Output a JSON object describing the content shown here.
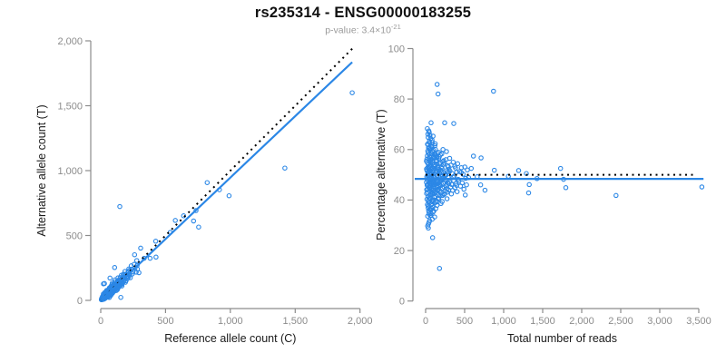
{
  "header": {
    "title": "rs235314 - ENSG00000183255",
    "pvalue_label": "p-value: ",
    "pvalue_mantissa": "3.4×10",
    "pvalue_exponent": "-21"
  },
  "style": {
    "point_color": "#2b87e6",
    "fit_line_color": "#2b87e6",
    "expected_line_color": "#000000",
    "axis_color": "#8c8c8c",
    "tick_label_color": "#8c8c8c",
    "axis_title_color": "#1a1a1a"
  },
  "chart_data": {
    "type": "scatter",
    "title": "rs235314 - ENSG00000183255",
    "subtitle": "p-value: 3.4×10^-21",
    "plots": [
      {
        "id": "allele-counts",
        "xlabel": "Reference allele count (C)",
        "ylabel": "Alternative allele count (T)",
        "xlim": [
          0,
          2000
        ],
        "ylim": [
          0,
          2000
        ],
        "xticks": [
          0,
          500,
          1000,
          1500,
          2000
        ],
        "xtick_labels": [
          "0",
          "500",
          "1,000",
          "1,500",
          "2,000"
        ],
        "yticks": [
          0,
          500,
          1000,
          1500,
          2000
        ],
        "ytick_labels": [
          "0",
          "500",
          "1,000",
          "1,500",
          "2,000"
        ],
        "point_mapping": "ref_alt",
        "grid": false,
        "lines": [
          {
            "name": "expected-ratio",
            "style": "dotted",
            "color_key": "expected_line_color",
            "x": [
              0,
              1950
            ],
            "y": [
              0,
              1950
            ]
          },
          {
            "name": "fitted-ratio",
            "style": "solid",
            "color_key": "fit_line_color",
            "x": [
              0,
              1940
            ],
            "y": [
              0,
              1836
            ]
          }
        ]
      },
      {
        "id": "percentage-by-coverage",
        "xlabel": "Total number of reads",
        "ylabel": "Percentage alternative (T)",
        "xlim": [
          0,
          3500
        ],
        "ylim": [
          0,
          100
        ],
        "xticks": [
          0,
          500,
          1000,
          1500,
          2000,
          2500,
          3000,
          3500
        ],
        "xtick_labels": [
          "0",
          "500",
          "1,000",
          "1,500",
          "2,000",
          "2,500",
          "3,000",
          "3,500"
        ],
        "yticks": [
          0,
          20,
          40,
          60,
          80,
          100
        ],
        "ytick_labels": [
          "0",
          "20",
          "40",
          "60",
          "80",
          "100"
        ],
        "point_mapping": "total_pct",
        "grid": false,
        "lines": [
          {
            "name": "expected-percentage",
            "style": "dotted",
            "color_key": "expected_line_color",
            "x": [
              0,
              3450
            ],
            "y": [
              50,
              50
            ]
          },
          {
            "name": "fitted-percentage",
            "style": "solid",
            "color_key": "fit_line_color",
            "x": [
              -140,
              3560
            ],
            "y": [
              48.4,
              48.4
            ]
          }
        ]
      }
    ],
    "samples_total_pct": [
      [
        10,
        47.0
      ],
      [
        12,
        52.3
      ],
      [
        14,
        44.1
      ],
      [
        16,
        56.2
      ],
      [
        18,
        40.3
      ],
      [
        15,
        49.2
      ],
      [
        11,
        55.4
      ],
      [
        13,
        42.6
      ],
      [
        17,
        51.6
      ],
      [
        19,
        45.9
      ],
      [
        21,
        48.0
      ],
      [
        22,
        57.5
      ],
      [
        23,
        38.2
      ],
      [
        24,
        62.1
      ],
      [
        25,
        44.3
      ],
      [
        26,
        52.8
      ],
      [
        27,
        33.6
      ],
      [
        28,
        59.4
      ],
      [
        29,
        46.2
      ],
      [
        30,
        50.9
      ],
      [
        31,
        41.5
      ],
      [
        32,
        64.8
      ],
      [
        33,
        36.9
      ],
      [
        34,
        54.2
      ],
      [
        35,
        48.8
      ],
      [
        36,
        30.5
      ],
      [
        37,
        60.7
      ],
      [
        38,
        45.1
      ],
      [
        39,
        56.3
      ],
      [
        40,
        40.2
      ],
      [
        41,
        67.4
      ],
      [
        42,
        49.6
      ],
      [
        43,
        35.0
      ],
      [
        44,
        58.1
      ],
      [
        45,
        43.7
      ],
      [
        46,
        51.9
      ],
      [
        47,
        38.8
      ],
      [
        48,
        63.2
      ],
      [
        49,
        47.0
      ],
      [
        50,
        53.5
      ],
      [
        51,
        31.8
      ],
      [
        52,
        59.9
      ],
      [
        53,
        44.9
      ],
      [
        54,
        50.2
      ],
      [
        55,
        36.4
      ],
      [
        56,
        65.6
      ],
      [
        57,
        42.1
      ],
      [
        58,
        55.7
      ],
      [
        59,
        47.8
      ],
      [
        60,
        33.9
      ],
      [
        22,
        68.3
      ],
      [
        26,
        29.7
      ],
      [
        31,
        61.9
      ],
      [
        36,
        39.5
      ],
      [
        41,
        53.1
      ],
      [
        46,
        34.4
      ],
      [
        51,
        57.0
      ],
      [
        56,
        45.8
      ],
      [
        24,
        49.9
      ],
      [
        29,
        66.1
      ],
      [
        34,
        37.7
      ],
      [
        39,
        52.4
      ],
      [
        44,
        31.2
      ],
      [
        49,
        60.5
      ],
      [
        54,
        46.6
      ],
      [
        59,
        55.0
      ],
      [
        27,
        43.0
      ],
      [
        33,
        58.8
      ],
      [
        38,
        35.8
      ],
      [
        43,
        51.4
      ],
      [
        48,
        40.9
      ],
      [
        53,
        62.6
      ],
      [
        58,
        48.4
      ],
      [
        23,
        54.8
      ],
      [
        35,
        28.9
      ],
      [
        47,
        66.8
      ],
      [
        62,
        47.3
      ],
      [
        64,
        55.9
      ],
      [
        66,
        40.6
      ],
      [
        68,
        60.3
      ],
      [
        70,
        45.5
      ],
      [
        72,
        52.2
      ],
      [
        74,
        36.7
      ],
      [
        76,
        58.6
      ],
      [
        78,
        44.1
      ],
      [
        80,
        50.7
      ],
      [
        82,
        39.3
      ],
      [
        84,
        62.9
      ],
      [
        86,
        47.9
      ],
      [
        88,
        54.5
      ],
      [
        90,
        42.8
      ],
      [
        92,
        57.8
      ],
      [
        94,
        35.2
      ],
      [
        96,
        51.6
      ],
      [
        98,
        46.4
      ],
      [
        100,
        59.7
      ],
      [
        63,
        41.9
      ],
      [
        65,
        53.9
      ],
      [
        67,
        48.6
      ],
      [
        69,
        34.7
      ],
      [
        71,
        61.2
      ],
      [
        73,
        44.6
      ],
      [
        75,
        56.1
      ],
      [
        77,
        38.4
      ],
      [
        79,
        50.0
      ],
      [
        81,
        46.9
      ],
      [
        83,
        63.7
      ],
      [
        85,
        42.4
      ],
      [
        87,
        55.3
      ],
      [
        89,
        47.5
      ],
      [
        91,
        37.1
      ],
      [
        93,
        59.1
      ],
      [
        95,
        45.3
      ],
      [
        97,
        52.6
      ],
      [
        99,
        40.0
      ],
      [
        101,
        57.2
      ],
      [
        103,
        48.9
      ],
      [
        105,
        43.4
      ],
      [
        107,
        54.0
      ],
      [
        109,
        46.0
      ],
      [
        111,
        50.4
      ],
      [
        113,
        38.9
      ],
      [
        115,
        56.6
      ],
      [
        117,
        44.8
      ],
      [
        119,
        61.5
      ],
      [
        104,
        35.6
      ],
      [
        106,
        52.0
      ],
      [
        108,
        47.1
      ],
      [
        110,
        41.1
      ],
      [
        112,
        58.2
      ],
      [
        114,
        49.3
      ],
      [
        116,
        33.3
      ],
      [
        118,
        53.3
      ],
      [
        120,
        45.9
      ],
      [
        63,
        64.4
      ],
      [
        69,
        36.2
      ],
      [
        75,
        49.1
      ],
      [
        81,
        60.9
      ],
      [
        87,
        39.9
      ],
      [
        93,
        51.1
      ],
      [
        99,
        43.9
      ],
      [
        105,
        56.9
      ],
      [
        111,
        47.7
      ],
      [
        117,
        42.6
      ],
      [
        95,
        65.3
      ],
      [
        85,
        32.4
      ],
      [
        122,
        48.3
      ],
      [
        125,
        53.7
      ],
      [
        128,
        43.2
      ],
      [
        131,
        57.4
      ],
      [
        134,
        46.7
      ],
      [
        137,
        51.3
      ],
      [
        140,
        39.6
      ],
      [
        143,
        55.5
      ],
      [
        146,
        45.0
      ],
      [
        149,
        49.8
      ],
      [
        152,
        42.0
      ],
      [
        155,
        58.4
      ],
      [
        158,
        47.2
      ],
      [
        161,
        52.9
      ],
      [
        164,
        44.4
      ],
      [
        167,
        56.4
      ],
      [
        170,
        40.4
      ],
      [
        173,
        50.6
      ],
      [
        176,
        46.3
      ],
      [
        179,
        54.3
      ],
      [
        182,
        48.7
      ],
      [
        185,
        43.6
      ],
      [
        188,
        57.9
      ],
      [
        191,
        45.7
      ],
      [
        194,
        51.8
      ],
      [
        197,
        38.6
      ],
      [
        200,
        53.0
      ],
      [
        124,
        60.1
      ],
      [
        129,
        41.4
      ],
      [
        135,
        55.8
      ],
      [
        141,
        47.4
      ],
      [
        147,
        37.9
      ],
      [
        153,
        52.3
      ],
      [
        159,
        44.2
      ],
      [
        165,
        58.9
      ],
      [
        171,
        46.8
      ],
      [
        177,
        50.3
      ],
      [
        183,
        41.7
      ],
      [
        189,
        54.9
      ],
      [
        195,
        48.1
      ],
      [
        123,
        62.3
      ],
      [
        133,
        39.1
      ],
      [
        144,
        56.7
      ],
      [
        156,
        43.8
      ],
      [
        168,
        51.5
      ],
      [
        180,
        46.1
      ],
      [
        192,
        49.4
      ],
      [
        198,
        42.9
      ],
      [
        127,
        58.0
      ],
      [
        139,
        45.4
      ],
      [
        151,
        53.4
      ],
      [
        163,
        40.8
      ],
      [
        175,
        57.1
      ],
      [
        187,
        47.6
      ],
      [
        199,
        51.0
      ],
      [
        130,
        36.6
      ],
      [
        205,
        48.5
      ],
      [
        210,
        52.5
      ],
      [
        215,
        44.7
      ],
      [
        220,
        55.2
      ],
      [
        225,
        46.5
      ],
      [
        230,
        50.8
      ],
      [
        235,
        42.2
      ],
      [
        240,
        54.6
      ],
      [
        245,
        47.0
      ],
      [
        250,
        49.7
      ],
      [
        255,
        43.5
      ],
      [
        260,
        56.0
      ],
      [
        265,
        45.6
      ],
      [
        270,
        51.7
      ],
      [
        275,
        40.5
      ],
      [
        280,
        53.6
      ],
      [
        285,
        46.9
      ],
      [
        290,
        49.0
      ],
      [
        295,
        44.0
      ],
      [
        300,
        52.1
      ],
      [
        207,
        58.3
      ],
      [
        217,
        41.8
      ],
      [
        227,
        54.1
      ],
      [
        237,
        45.2
      ],
      [
        247,
        50.1
      ],
      [
        257,
        47.8
      ],
      [
        267,
        59.2
      ],
      [
        277,
        43.1
      ],
      [
        287,
        51.2
      ],
      [
        297,
        46.4
      ],
      [
        212,
        39.4
      ],
      [
        232,
        55.6
      ],
      [
        252,
        48.0
      ],
      [
        272,
        44.5
      ],
      [
        292,
        53.2
      ],
      [
        222,
        60.0
      ],
      [
        242,
        42.5
      ],
      [
        262,
        49.9
      ],
      [
        305,
        47.2
      ],
      [
        312,
        51.5
      ],
      [
        319,
        45.1
      ],
      [
        326,
        53.8
      ],
      [
        333,
        46.2
      ],
      [
        340,
        50.5
      ],
      [
        347,
        43.8
      ],
      [
        354,
        55.0
      ],
      [
        361,
        47.7
      ],
      [
        368,
        49.5
      ],
      [
        375,
        44.9
      ],
      [
        382,
        52.7
      ],
      [
        389,
        46.6
      ],
      [
        396,
        51.0
      ],
      [
        403,
        43.3
      ],
      [
        410,
        54.4
      ],
      [
        417,
        48.2
      ],
      [
        308,
        56.5
      ],
      [
        330,
        42.4
      ],
      [
        352,
        49.0
      ],
      [
        374,
        53.4
      ],
      [
        398,
        45.8
      ],
      [
        425,
        47.5
      ],
      [
        436,
        51.3
      ],
      [
        447,
        45.5
      ],
      [
        458,
        52.8
      ],
      [
        469,
        46.8
      ],
      [
        480,
        50.2
      ],
      [
        491,
        44.3
      ],
      [
        502,
        53.1
      ],
      [
        513,
        48.6
      ],
      [
        524,
        46.0
      ],
      [
        535,
        51.9
      ],
      [
        550,
        48.9
      ],
      [
        3540,
        45.2
      ],
      [
        2440,
        41.8
      ],
      [
        870,
        83.1
      ],
      [
        1729,
        52.5
      ],
      [
        1768,
        48.2
      ],
      [
        1796,
        44.9
      ],
      [
        1427,
        48.5
      ],
      [
        1328,
        46.1
      ],
      [
        1291,
        50.5
      ],
      [
        1192,
        51.7
      ],
      [
        178,
        12.9
      ],
      [
        148,
        85.8
      ],
      [
        159,
        82.0
      ],
      [
        613,
        57.4
      ],
      [
        711,
        56.7
      ],
      [
        457,
        50.9
      ],
      [
        70,
        70.6
      ],
      [
        244,
        70.6
      ],
      [
        360,
        70.3
      ],
      [
        89,
        25.1
      ],
      [
        880,
        51.8
      ],
      [
        760,
        43.9
      ],
      [
        508,
        42.0
      ],
      [
        585,
        52.5
      ],
      [
        660,
        49.2
      ],
      [
        705,
        46.0
      ],
      [
        1060,
        49.4
      ],
      [
        1320,
        42.8
      ]
    ]
  }
}
